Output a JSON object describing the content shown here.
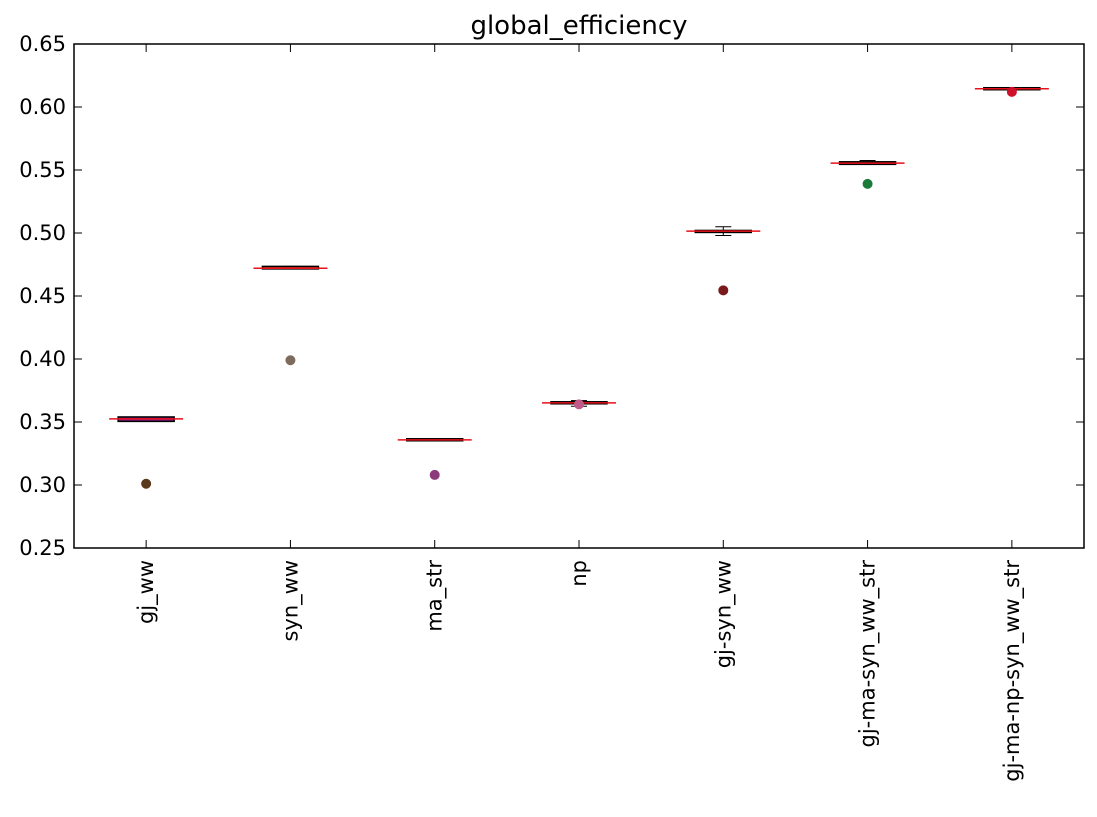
{
  "chart_data": {
    "type": "box",
    "title": "global_efficiency",
    "xlabel": "",
    "ylabel": "",
    "ylim": [
      0.25,
      0.65
    ],
    "yticks": [
      0.25,
      0.3,
      0.35,
      0.4,
      0.45,
      0.5,
      0.55,
      0.6,
      0.65
    ],
    "ytick_labels": [
      "0.25",
      "0.30",
      "0.35",
      "0.40",
      "0.45",
      "0.50",
      "0.55",
      "0.60",
      "0.65"
    ],
    "grid": false,
    "categories": [
      "gj_ww",
      "syn_ww",
      "ma_str",
      "np",
      "gj-syn_ww",
      "gj-ma-syn_ww_str",
      "gj-ma-np-syn_ww_str"
    ],
    "boxes": [
      {
        "q1": 0.3505,
        "median": 0.3525,
        "q3": 0.354,
        "whisker_low": 0.3505,
        "whisker_high": 0.354,
        "outlier": 0.301,
        "outlier_color": "#5a3a1a",
        "box_color": "#8b1a8b"
      },
      {
        "q1": 0.4715,
        "median": 0.472,
        "q3": 0.4735,
        "whisker_low": 0.4715,
        "whisker_high": 0.4735,
        "outlier": 0.399,
        "outlier_color": "#7d6b5d",
        "box_color": "#d03a2a"
      },
      {
        "q1": 0.3355,
        "median": 0.3358,
        "q3": 0.3363,
        "whisker_low": 0.3355,
        "whisker_high": 0.3363,
        "outlier": 0.308,
        "outlier_color": "#8b3a7a",
        "box_color": "#d06a2a"
      },
      {
        "q1": 0.3645,
        "median": 0.3652,
        "q3": 0.366,
        "whisker_low": 0.3625,
        "whisker_high": 0.367,
        "outlier": 0.364,
        "outlier_color": "#c05a8a",
        "box_color": "#8b5a6a"
      },
      {
        "q1": 0.5005,
        "median": 0.5015,
        "q3": 0.502,
        "whisker_low": 0.498,
        "whisker_high": 0.505,
        "outlier": 0.4545,
        "outlier_color": "#7a1a1a",
        "box_color": "#aa3a2a"
      },
      {
        "q1": 0.5545,
        "median": 0.5555,
        "q3": 0.5565,
        "whisker_low": 0.5545,
        "whisker_high": 0.5575,
        "outlier": 0.539,
        "outlier_color": "#1a7a3a",
        "box_color": "#b03a1a"
      },
      {
        "q1": 0.6145,
        "median": 0.6145,
        "q3": 0.6145,
        "whisker_low": 0.6145,
        "whisker_high": 0.6145,
        "outlier": 0.612,
        "outlier_color": "#d0102a",
        "box_color": "#d0102a"
      }
    ],
    "median_color": "#e8101a"
  }
}
